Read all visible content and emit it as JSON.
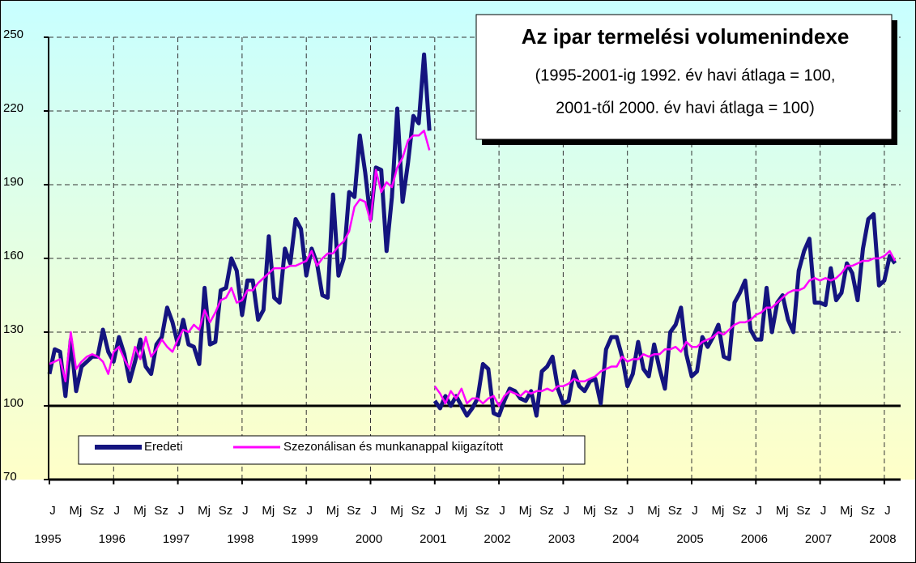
{
  "chart_data": {
    "type": "line",
    "title": "Az ipar termelési volumenindexe",
    "subtitle": [
      "(1995-2001-ig 1992. év havi átlaga = 100,",
      "2001-től 2000. év havi átlaga = 100)"
    ],
    "categories": [
      "J",
      null,
      null,
      null,
      "Mj",
      null,
      null,
      null,
      "Sz",
      null,
      null,
      null,
      "J",
      null,
      null,
      null,
      "Mj",
      null,
      null,
      null,
      "Sz",
      null,
      null,
      null,
      "J",
      null,
      null,
      null,
      "Mj",
      null,
      null,
      null,
      "Sz",
      null,
      null,
      null,
      "J",
      null,
      null,
      null,
      "Mj",
      null,
      null,
      null,
      "Sz",
      null,
      null,
      null,
      "J",
      null,
      null,
      null,
      "Mj",
      null,
      null,
      null,
      "Sz",
      null,
      null,
      null,
      "J",
      null,
      null,
      null,
      "Mj",
      null,
      null,
      null,
      "Sz",
      null,
      null,
      null,
      "J",
      null,
      null,
      null,
      "Mj",
      null,
      null,
      null,
      "Sz",
      null,
      null,
      null,
      "J",
      null,
      null,
      null,
      "Mj",
      null,
      null,
      null,
      "Sz",
      null,
      null,
      null,
      "J",
      null,
      null,
      null,
      "Mj",
      null,
      null,
      null,
      "Sz",
      null,
      null,
      null,
      "J",
      null,
      null,
      null,
      "Mj",
      null,
      null,
      null,
      "Sz",
      null,
      null,
      null,
      "J",
      null,
      null,
      null,
      "Mj",
      null,
      null,
      null,
      "Sz",
      null,
      null,
      null,
      "J",
      null,
      null,
      null,
      "Mj",
      null,
      null,
      null,
      "Sz",
      null,
      null,
      null,
      "J",
      null,
      null,
      null,
      "Mj",
      null,
      null,
      null,
      "Sz",
      null,
      null,
      null,
      "J",
      null,
      null
    ],
    "year_labels": [
      "1995",
      "1996",
      "1997",
      "1998",
      "1999",
      "2000",
      "2001",
      "2002",
      "2003",
      "2004",
      "2005",
      "2006",
      "2007",
      "2008"
    ],
    "series": [
      {
        "name": "Eredeti",
        "color": "#14147f",
        "segments": [
          [
            113,
            123,
            122,
            104,
            127,
            106,
            116,
            118,
            120,
            120,
            131,
            122,
            118,
            128,
            121,
            110,
            118,
            127,
            116,
            113,
            125,
            128,
            140,
            134,
            125,
            135,
            125,
            124,
            117,
            148,
            125,
            126,
            147,
            148,
            160,
            155,
            137,
            151,
            151,
            135,
            139,
            169,
            144,
            142,
            164,
            158,
            176,
            172,
            153,
            164,
            158,
            145,
            144,
            186,
            153,
            160,
            187,
            185,
            210,
            195,
            176,
            197,
            196,
            163,
            185,
            221,
            183,
            199,
            218,
            215,
            243,
            212
          ],
          [
            102,
            99,
            104,
            100,
            104,
            100,
            96,
            99,
            103,
            117,
            115,
            97,
            96,
            102,
            107,
            106,
            103,
            102,
            106,
            96,
            114,
            116,
            120,
            107,
            101,
            102,
            114,
            108,
            106,
            110,
            111,
            101,
            123,
            128,
            128,
            120,
            108,
            113,
            126,
            115,
            112,
            125,
            115,
            107,
            130,
            133,
            140,
            121,
            112,
            114,
            128,
            124,
            128,
            133,
            120,
            119,
            142,
            146,
            151,
            131,
            127,
            127,
            148,
            130,
            142,
            145,
            135,
            130,
            155,
            163,
            168,
            142,
            142,
            141,
            156,
            143,
            146,
            158,
            154,
            143,
            164,
            176,
            178,
            149,
            151,
            161,
            158
          ]
        ]
      },
      {
        "name": "Szezonálisan és munkanappal kiigazított",
        "color": "#ff00ff",
        "segments": [
          [
            117,
            118,
            119,
            110,
            130,
            115,
            118,
            120,
            121,
            120,
            118,
            113,
            122,
            124,
            119,
            115,
            124,
            119,
            128,
            120,
            123,
            127,
            124,
            122,
            127,
            131,
            130,
            133,
            131,
            139,
            134,
            138,
            143,
            144,
            148,
            142,
            143,
            147,
            147,
            150,
            152,
            154,
            156,
            156,
            156,
            157,
            157,
            158,
            159,
            163,
            157,
            160,
            162,
            162,
            165,
            167,
            171,
            181,
            184,
            183,
            175,
            196,
            187,
            191,
            189,
            197,
            201,
            208,
            210,
            210,
            212,
            204
          ],
          [
            108,
            105,
            101,
            106,
            103,
            107,
            101,
            103,
            103,
            101,
            103,
            104,
            100,
            104,
            106,
            105,
            104,
            106,
            105,
            106,
            106,
            107,
            106,
            108,
            108,
            109,
            111,
            110,
            110,
            111,
            112,
            114,
            115,
            116,
            116,
            120,
            118,
            119,
            119,
            121,
            120,
            121,
            121,
            123,
            123,
            124,
            122,
            126,
            124,
            124,
            126,
            127,
            128,
            130,
            129,
            131,
            133,
            134,
            134,
            135,
            137,
            138,
            140,
            140,
            142,
            144,
            146,
            147,
            147,
            148,
            151,
            152,
            151,
            152,
            151,
            152,
            154,
            157,
            157,
            158,
            159,
            159,
            160,
            160,
            161,
            163,
            159
          ]
        ]
      }
    ],
    "ylim": [
      70,
      250
    ],
    "yticks": [
      70,
      100,
      130,
      160,
      190,
      220,
      250
    ],
    "reference_line": 100,
    "grid": true,
    "legend": "bottom-left"
  }
}
